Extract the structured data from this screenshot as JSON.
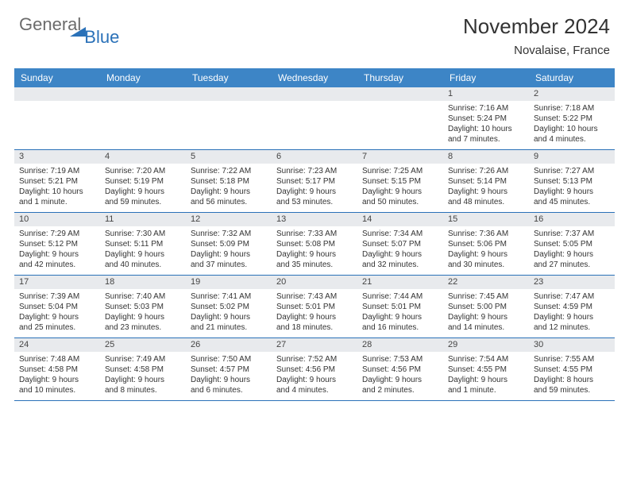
{
  "logo": {
    "part1": "General",
    "part2": "Blue"
  },
  "title": "November 2024",
  "subtitle": "Novalaise, France",
  "colors": {
    "header_bg": "#3d85c6",
    "border": "#2a71b8",
    "daynum_bg": "#e8eaed",
    "text": "#333333",
    "logo_gray": "#6b6b6b",
    "logo_blue": "#2a71b8"
  },
  "weekdays": [
    "Sunday",
    "Monday",
    "Tuesday",
    "Wednesday",
    "Thursday",
    "Friday",
    "Saturday"
  ],
  "weeks": [
    [
      {
        "day": "",
        "lines": []
      },
      {
        "day": "",
        "lines": []
      },
      {
        "day": "",
        "lines": []
      },
      {
        "day": "",
        "lines": []
      },
      {
        "day": "",
        "lines": []
      },
      {
        "day": "1",
        "lines": [
          "Sunrise: 7:16 AM",
          "Sunset: 5:24 PM",
          "Daylight: 10 hours",
          "and 7 minutes."
        ]
      },
      {
        "day": "2",
        "lines": [
          "Sunrise: 7:18 AM",
          "Sunset: 5:22 PM",
          "Daylight: 10 hours",
          "and 4 minutes."
        ]
      }
    ],
    [
      {
        "day": "3",
        "lines": [
          "Sunrise: 7:19 AM",
          "Sunset: 5:21 PM",
          "Daylight: 10 hours",
          "and 1 minute."
        ]
      },
      {
        "day": "4",
        "lines": [
          "Sunrise: 7:20 AM",
          "Sunset: 5:19 PM",
          "Daylight: 9 hours",
          "and 59 minutes."
        ]
      },
      {
        "day": "5",
        "lines": [
          "Sunrise: 7:22 AM",
          "Sunset: 5:18 PM",
          "Daylight: 9 hours",
          "and 56 minutes."
        ]
      },
      {
        "day": "6",
        "lines": [
          "Sunrise: 7:23 AM",
          "Sunset: 5:17 PM",
          "Daylight: 9 hours",
          "and 53 minutes."
        ]
      },
      {
        "day": "7",
        "lines": [
          "Sunrise: 7:25 AM",
          "Sunset: 5:15 PM",
          "Daylight: 9 hours",
          "and 50 minutes."
        ]
      },
      {
        "day": "8",
        "lines": [
          "Sunrise: 7:26 AM",
          "Sunset: 5:14 PM",
          "Daylight: 9 hours",
          "and 48 minutes."
        ]
      },
      {
        "day": "9",
        "lines": [
          "Sunrise: 7:27 AM",
          "Sunset: 5:13 PM",
          "Daylight: 9 hours",
          "and 45 minutes."
        ]
      }
    ],
    [
      {
        "day": "10",
        "lines": [
          "Sunrise: 7:29 AM",
          "Sunset: 5:12 PM",
          "Daylight: 9 hours",
          "and 42 minutes."
        ]
      },
      {
        "day": "11",
        "lines": [
          "Sunrise: 7:30 AM",
          "Sunset: 5:11 PM",
          "Daylight: 9 hours",
          "and 40 minutes."
        ]
      },
      {
        "day": "12",
        "lines": [
          "Sunrise: 7:32 AM",
          "Sunset: 5:09 PM",
          "Daylight: 9 hours",
          "and 37 minutes."
        ]
      },
      {
        "day": "13",
        "lines": [
          "Sunrise: 7:33 AM",
          "Sunset: 5:08 PM",
          "Daylight: 9 hours",
          "and 35 minutes."
        ]
      },
      {
        "day": "14",
        "lines": [
          "Sunrise: 7:34 AM",
          "Sunset: 5:07 PM",
          "Daylight: 9 hours",
          "and 32 minutes."
        ]
      },
      {
        "day": "15",
        "lines": [
          "Sunrise: 7:36 AM",
          "Sunset: 5:06 PM",
          "Daylight: 9 hours",
          "and 30 minutes."
        ]
      },
      {
        "day": "16",
        "lines": [
          "Sunrise: 7:37 AM",
          "Sunset: 5:05 PM",
          "Daylight: 9 hours",
          "and 27 minutes."
        ]
      }
    ],
    [
      {
        "day": "17",
        "lines": [
          "Sunrise: 7:39 AM",
          "Sunset: 5:04 PM",
          "Daylight: 9 hours",
          "and 25 minutes."
        ]
      },
      {
        "day": "18",
        "lines": [
          "Sunrise: 7:40 AM",
          "Sunset: 5:03 PM",
          "Daylight: 9 hours",
          "and 23 minutes."
        ]
      },
      {
        "day": "19",
        "lines": [
          "Sunrise: 7:41 AM",
          "Sunset: 5:02 PM",
          "Daylight: 9 hours",
          "and 21 minutes."
        ]
      },
      {
        "day": "20",
        "lines": [
          "Sunrise: 7:43 AM",
          "Sunset: 5:01 PM",
          "Daylight: 9 hours",
          "and 18 minutes."
        ]
      },
      {
        "day": "21",
        "lines": [
          "Sunrise: 7:44 AM",
          "Sunset: 5:01 PM",
          "Daylight: 9 hours",
          "and 16 minutes."
        ]
      },
      {
        "day": "22",
        "lines": [
          "Sunrise: 7:45 AM",
          "Sunset: 5:00 PM",
          "Daylight: 9 hours",
          "and 14 minutes."
        ]
      },
      {
        "day": "23",
        "lines": [
          "Sunrise: 7:47 AM",
          "Sunset: 4:59 PM",
          "Daylight: 9 hours",
          "and 12 minutes."
        ]
      }
    ],
    [
      {
        "day": "24",
        "lines": [
          "Sunrise: 7:48 AM",
          "Sunset: 4:58 PM",
          "Daylight: 9 hours",
          "and 10 minutes."
        ]
      },
      {
        "day": "25",
        "lines": [
          "Sunrise: 7:49 AM",
          "Sunset: 4:58 PM",
          "Daylight: 9 hours",
          "and 8 minutes."
        ]
      },
      {
        "day": "26",
        "lines": [
          "Sunrise: 7:50 AM",
          "Sunset: 4:57 PM",
          "Daylight: 9 hours",
          "and 6 minutes."
        ]
      },
      {
        "day": "27",
        "lines": [
          "Sunrise: 7:52 AM",
          "Sunset: 4:56 PM",
          "Daylight: 9 hours",
          "and 4 minutes."
        ]
      },
      {
        "day": "28",
        "lines": [
          "Sunrise: 7:53 AM",
          "Sunset: 4:56 PM",
          "Daylight: 9 hours",
          "and 2 minutes."
        ]
      },
      {
        "day": "29",
        "lines": [
          "Sunrise: 7:54 AM",
          "Sunset: 4:55 PM",
          "Daylight: 9 hours",
          "and 1 minute."
        ]
      },
      {
        "day": "30",
        "lines": [
          "Sunrise: 7:55 AM",
          "Sunset: 4:55 PM",
          "Daylight: 8 hours",
          "and 59 minutes."
        ]
      }
    ]
  ]
}
